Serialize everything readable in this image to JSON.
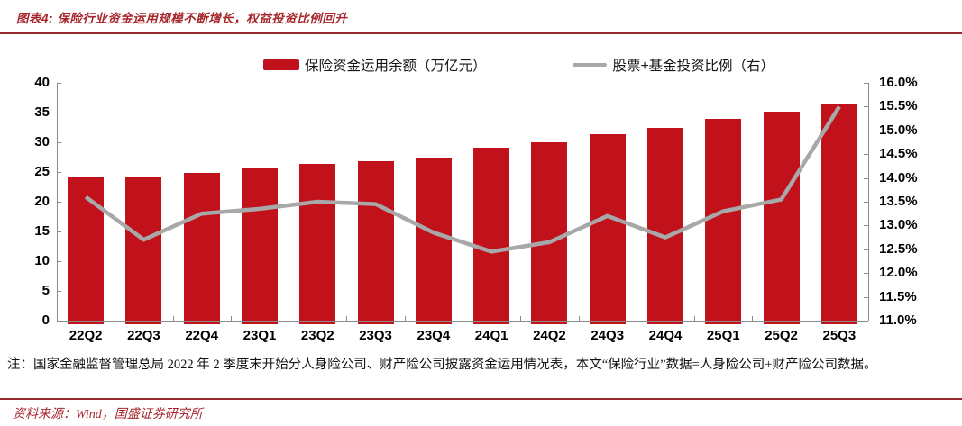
{
  "header": {
    "title": "图表4: 保险行业资金运用规模不断增长，权益投资比例回升"
  },
  "legend": {
    "bar_label": "保险资金运用余额（万亿元）",
    "line_label": "股票+基金投资比例（右）"
  },
  "chart_data": {
    "type": "bar",
    "subtype": "bar+line combo, dual axis",
    "categories": [
      "22Q2",
      "22Q3",
      "22Q4",
      "23Q1",
      "23Q2",
      "23Q3",
      "23Q4",
      "24Q1",
      "24Q2",
      "24Q3",
      "24Q4",
      "25Q1",
      "25Q2",
      "25Q3"
    ],
    "series": [
      {
        "name": "保险资金运用余额（万亿元）",
        "type": "bar",
        "axis": "left",
        "color": "#C1121C",
        "values": [
          24.1,
          24.3,
          24.8,
          25.6,
          26.3,
          26.8,
          27.5,
          29.1,
          30.0,
          31.3,
          32.5,
          34.0,
          35.2,
          36.3
        ]
      },
      {
        "name": "股票+基金投资比例（右）",
        "type": "line",
        "axis": "right",
        "color": "#A8A8A8",
        "values": [
          13.6,
          12.7,
          13.25,
          13.35,
          13.5,
          13.45,
          12.85,
          12.45,
          12.65,
          13.2,
          12.75,
          13.3,
          13.55,
          15.5
        ]
      }
    ],
    "left_axis": {
      "min": 0,
      "max": 40,
      "step": 5,
      "tick_labels": [
        "0",
        "5",
        "10",
        "15",
        "20",
        "25",
        "30",
        "35",
        "40"
      ]
    },
    "right_axis": {
      "min": 11,
      "max": 16,
      "step": 0.5,
      "tick_labels": [
        "11.0%",
        "11.5%",
        "12.0%",
        "12.5%",
        "13.0%",
        "13.5%",
        "14.0%",
        "14.5%",
        "15.0%",
        "15.5%",
        "16.0%"
      ]
    },
    "grid": false,
    "legend_position": "top"
  },
  "colors": {
    "bar_red": "#C1121C",
    "line_gray": "#A8A8A8",
    "accent_red": "#A6262B",
    "rule_red": "#97282C",
    "axis_gray": "#8C8C8C"
  },
  "note": {
    "text": "注：国家金融监督管理总局 2022 年 2 季度末开始分人身险公司、财产险公司披露资金运用情况表，本文“保险行业”数据=人身险公司+财产险公司数据。"
  },
  "source": {
    "text": "资料来源：Wind，国盛证券研究所"
  }
}
